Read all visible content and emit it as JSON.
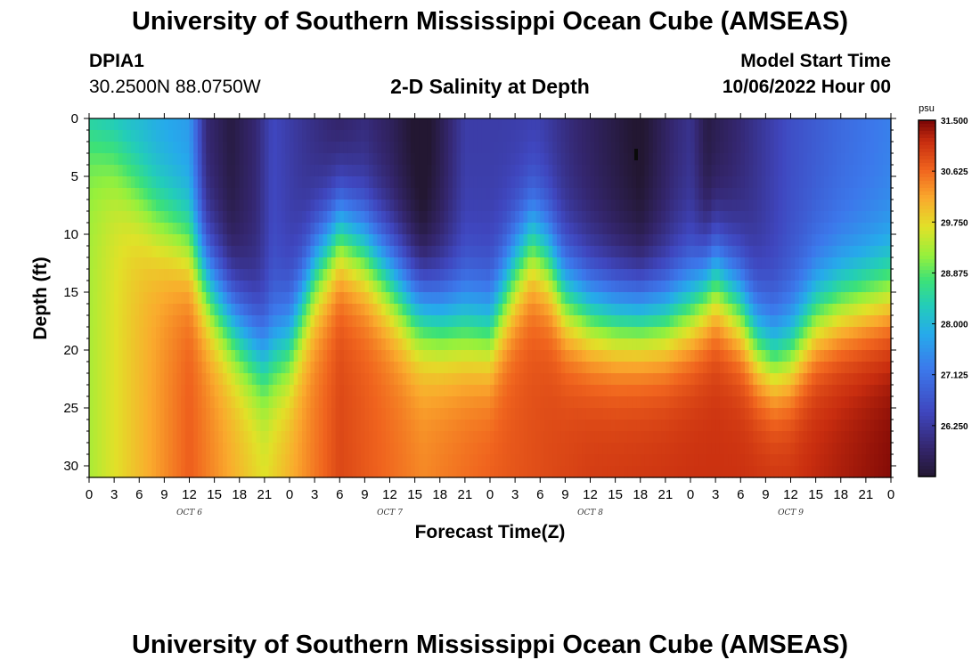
{
  "header": {
    "title": "University of Southern Mississippi Ocean Cube (AMSEAS)",
    "station_id": "DPIA1",
    "coordinates": "30.2500N  88.0750W",
    "plot_title": "2-D Salinity at Depth",
    "model_start_label": "Model Start Time",
    "model_start_value": "10/06/2022 Hour 00"
  },
  "footer": {
    "title": "University of Southern Mississippi Ocean Cube (AMSEAS)"
  },
  "chart_data": {
    "type": "heatmap",
    "title": "2-D Salinity at Depth",
    "xlabel": "Forecast Time(Z)",
    "ylabel": "Depth (ft)",
    "x_tick_labels": [
      "0",
      "3",
      "6",
      "9",
      "12",
      "15",
      "18",
      "21",
      "0",
      "3",
      "6",
      "9",
      "12",
      "15",
      "18",
      "21",
      "0",
      "3",
      "6",
      "9",
      "12",
      "15",
      "18",
      "21",
      "0",
      "3",
      "6",
      "9",
      "12",
      "15",
      "18",
      "21",
      "0"
    ],
    "x_date_labels": [
      "OCT 6",
      "OCT 7",
      "OCT 8",
      "OCT 9"
    ],
    "x_range_hours": [
      0,
      96
    ],
    "y_range_ft": [
      0,
      31
    ],
    "y_ticks": [
      0,
      5,
      10,
      15,
      20,
      25,
      30
    ],
    "colorbar": {
      "unit": "psu",
      "tick_labels": [
        "31.500",
        "30.625",
        "29.750",
        "28.875",
        "28.000",
        "27.125",
        "26.250"
      ],
      "range": [
        25.375,
        31.5
      ]
    },
    "halocline_depth_ft": {
      "hours": [
        0,
        3,
        6,
        8,
        12,
        15,
        18,
        21,
        24,
        27,
        30,
        33,
        36,
        39,
        42,
        45,
        48,
        51,
        53,
        55,
        57,
        60,
        63,
        66,
        69,
        72,
        75,
        78,
        80,
        82,
        84,
        87,
        90,
        93,
        96
      ],
      "values": [
        1.0,
        3.0,
        6.5,
        8.5,
        11.0,
        15.0,
        18.0,
        20.5,
        19.0,
        13.0,
        9.5,
        11.0,
        13.5,
        16.0,
        17.0,
        17.5,
        18.0,
        13.0,
        10.5,
        12.0,
        15.0,
        16.5,
        17.0,
        17.0,
        17.0,
        16.0,
        13.5,
        16.0,
        19.0,
        20.5,
        20.0,
        17.0,
        16.0,
        15.5,
        15.0
      ]
    },
    "surface_salinity_psu": {
      "hours": [
        0,
        6,
        12,
        14,
        17,
        20,
        22,
        27,
        30,
        33,
        36,
        40,
        42,
        45,
        48,
        54,
        58,
        66,
        70,
        72,
        74,
        78,
        84,
        90,
        96
      ],
      "values": [
        27.8,
        27.9,
        27.6,
        25.9,
        25.5,
        25.9,
        26.5,
        26.0,
        25.7,
        25.9,
        25.7,
        25.2,
        25.6,
        26.3,
        26.3,
        26.3,
        25.9,
        25.3,
        25.9,
        26.1,
        25.5,
        25.9,
        26.6,
        27.0,
        27.3
      ]
    },
    "bottom_salinity_psu": {
      "hours": [
        0,
        12,
        21,
        30,
        40,
        48,
        60,
        72,
        84,
        96
      ],
      "values": [
        29.3,
        30.7,
        29.7,
        30.9,
        30.4,
        30.7,
        31.0,
        31.1,
        31.1,
        31.45
      ]
    }
  }
}
